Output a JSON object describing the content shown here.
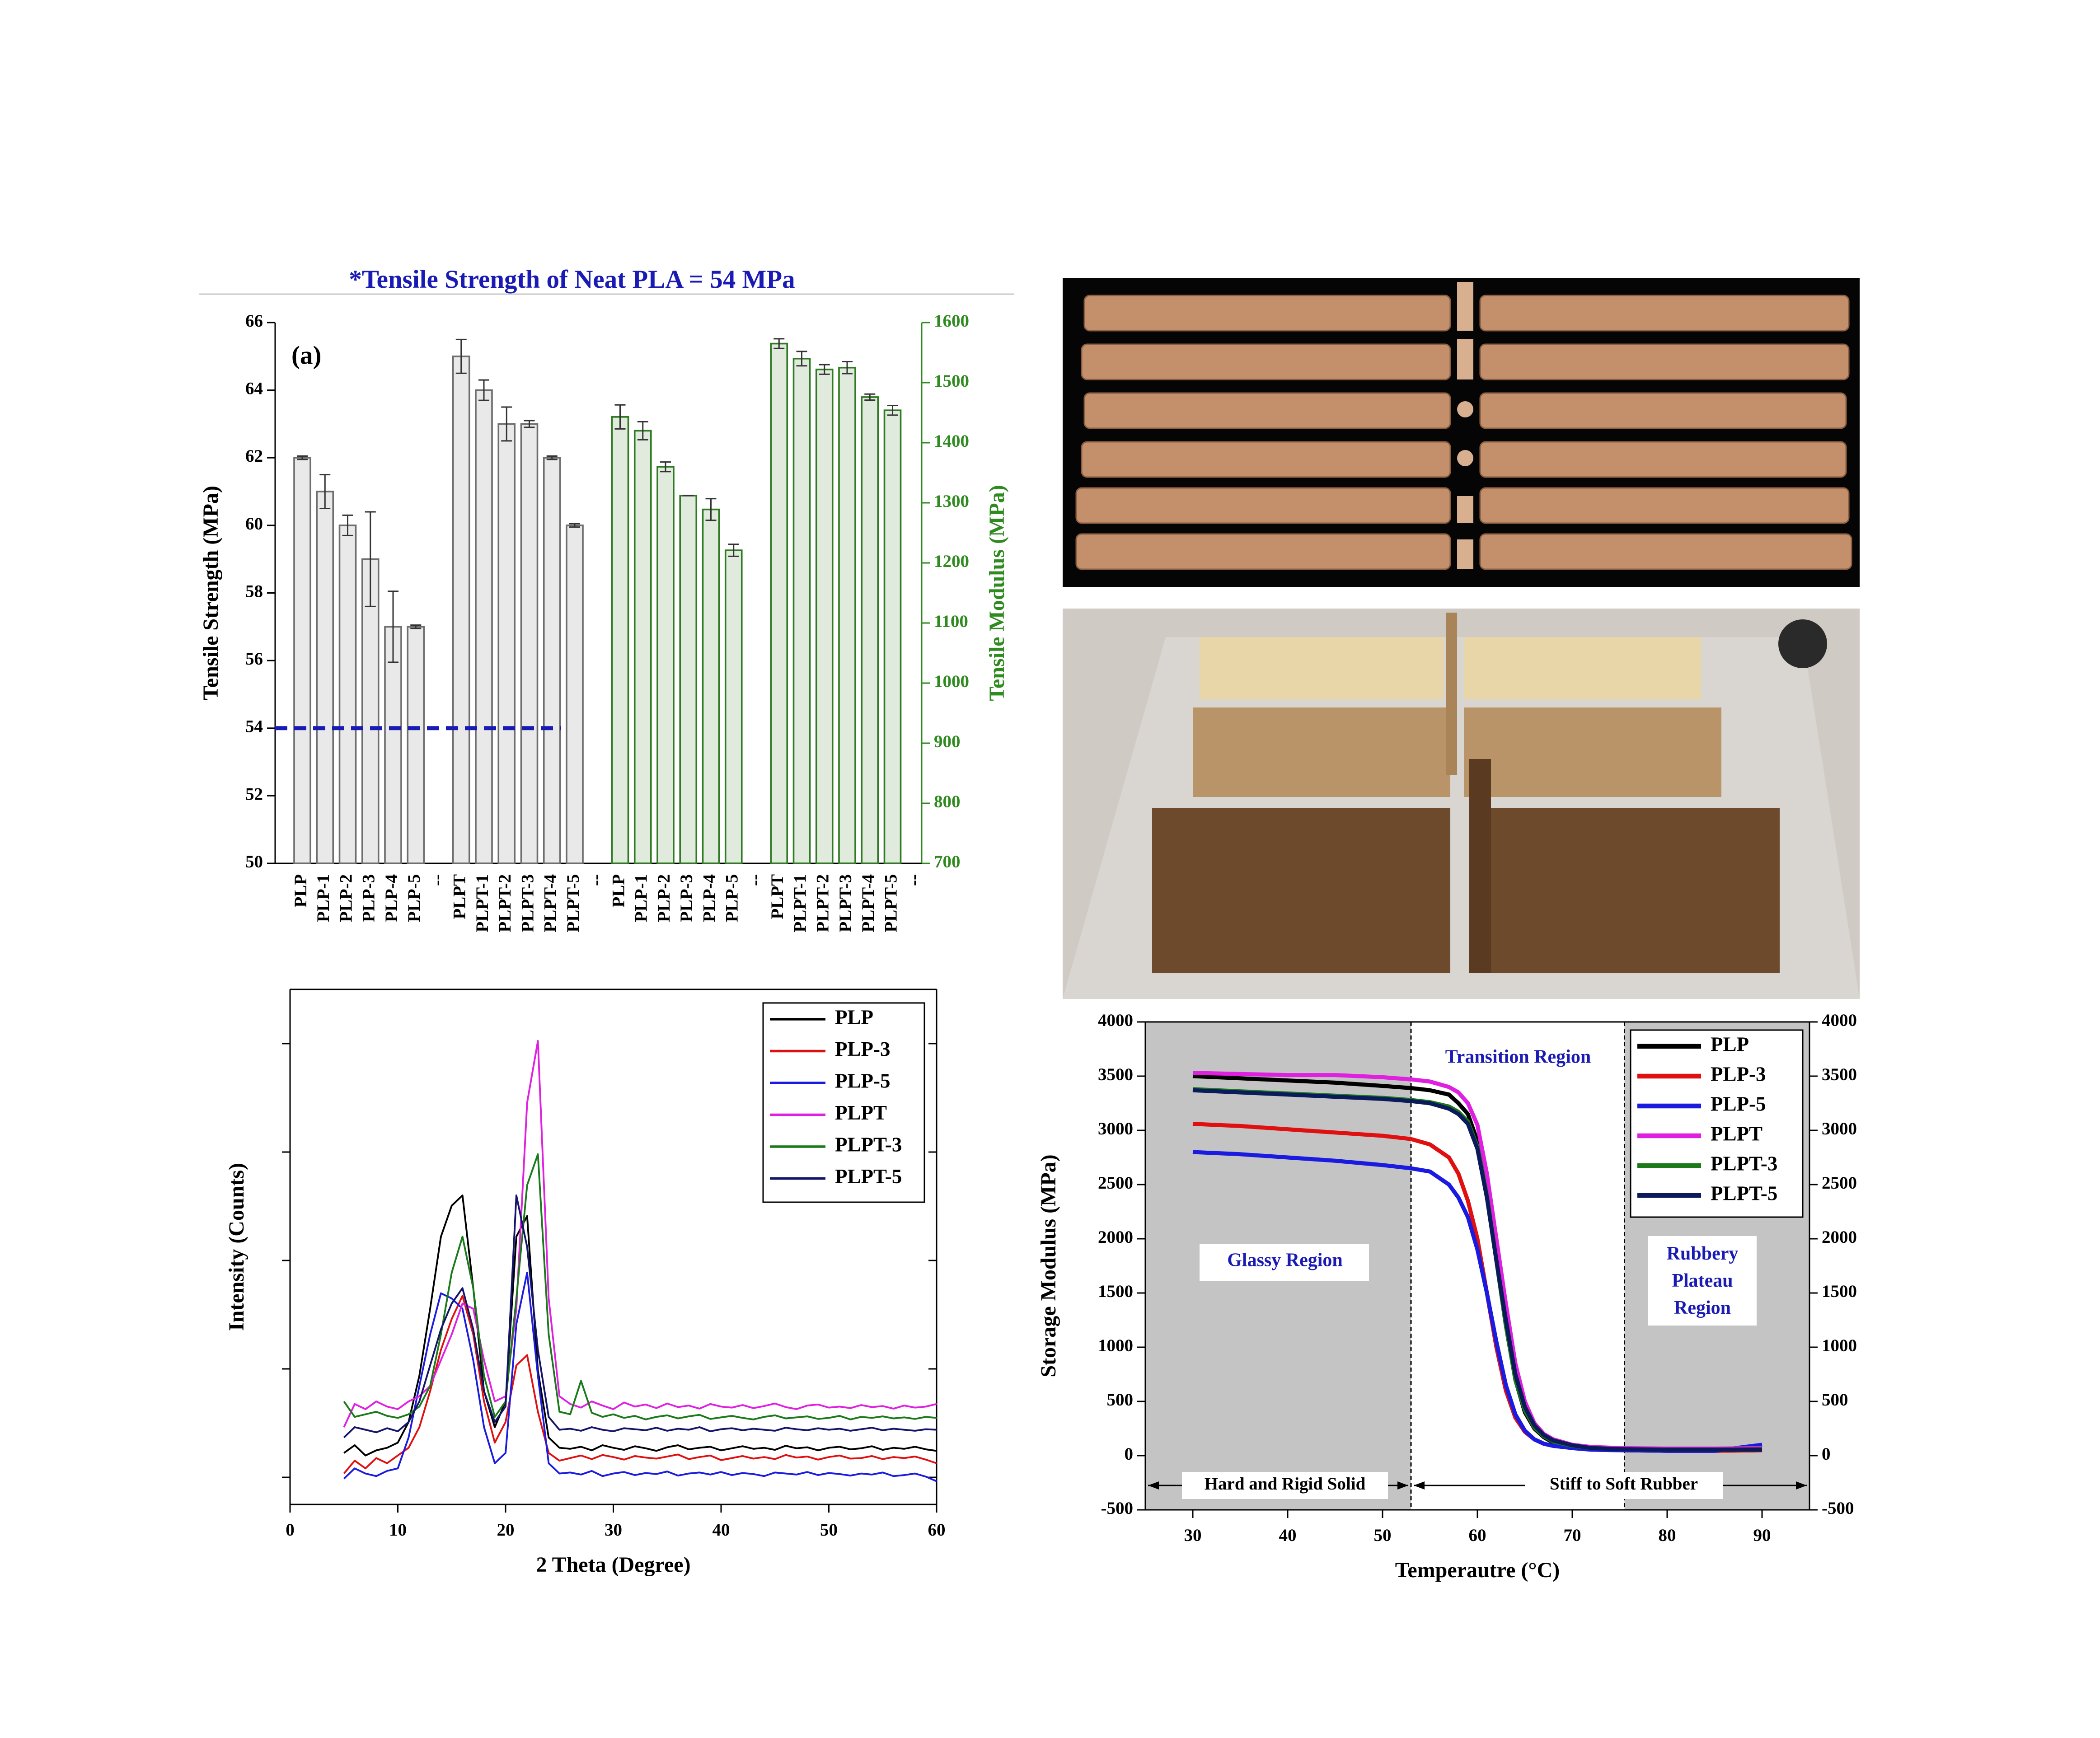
{
  "chart_data": [
    {
      "type": "bar",
      "title": "*Tensile Strength of Neat PLA = 54 MPa",
      "label": "(a)",
      "ylabel": "Tensile Strength (MPa)",
      "y2label": "Tensile Modulus (MPa)",
      "y2_color": "#2f8a1f",
      "categories": [
        "PLP",
        "PLP-1",
        "PLP-2",
        "PLP-3",
        "PLP-4",
        "PLP-5",
        "--",
        "PLPT",
        "PLPT-1",
        "PLPT-2",
        "PLPT-3",
        "PLPT-4",
        "PLPT-5",
        "--",
        "PLP",
        "PLP-1",
        "PLP-2",
        "PLP-3",
        "PLP-4",
        "PLP-5",
        "--",
        "PLPT",
        "PLPT-1",
        "PLPT-2",
        "PLPT-3",
        "PLPT-4",
        "PLPT-5",
        "--"
      ],
      "series": [
        {
          "color": "#6e6e6e",
          "axis": "y",
          "values": [
            62,
            61,
            60,
            59,
            57,
            57,
            null,
            65,
            64,
            63,
            63,
            62,
            60,
            null,
            null,
            null,
            null,
            null,
            null,
            null,
            null,
            null,
            null,
            null,
            null,
            null,
            null,
            null
          ],
          "errors": [
            0.05,
            0.5,
            0.3,
            1.4,
            1.05,
            0.05,
            null,
            0.5,
            0.3,
            0.5,
            0.1,
            0.05,
            0.05,
            null,
            null,
            null,
            null,
            null,
            null,
            null,
            null,
            null,
            null,
            null,
            null,
            null,
            null,
            null
          ]
        },
        {
          "color": "#2f7a22",
          "axis": "y2",
          "values": [
            null,
            null,
            null,
            null,
            null,
            null,
            null,
            null,
            null,
            null,
            null,
            null,
            null,
            null,
            1443,
            1420,
            1360,
            1312,
            1289,
            1221,
            null,
            1565,
            1540,
            1522,
            1525,
            1476,
            1454,
            null
          ],
          "errors": [
            null,
            null,
            null,
            null,
            null,
            null,
            null,
            null,
            null,
            null,
            null,
            null,
            null,
            null,
            20,
            15,
            8,
            0,
            18,
            10,
            null,
            8,
            12,
            8,
            10,
            5,
            8,
            null
          ]
        }
      ],
      "reference_line": {
        "value": 54,
        "color": "#1a1ab4"
      },
      "ylim": [
        50,
        66
      ],
      "yticks": [
        50,
        52,
        54,
        56,
        58,
        60,
        62,
        64,
        66
      ],
      "y2lim": [
        700,
        1600
      ],
      "y2ticks": [
        700,
        800,
        900,
        1000,
        1100,
        1200,
        1300,
        1400,
        1500,
        1600
      ]
    },
    {
      "type": "line",
      "xlabel": "2 Theta (Degree)",
      "ylabel": "Intensity (Counts)",
      "legend": "upper right",
      "xlim": [
        0,
        60
      ],
      "xticks": [
        0,
        10,
        20,
        30,
        40,
        50,
        60
      ],
      "ylim": [
        0,
        1000
      ],
      "x": [
        5,
        6,
        7,
        8,
        9,
        10,
        11,
        12,
        13,
        14,
        15,
        16,
        17,
        18,
        19,
        20,
        21,
        22,
        23,
        24,
        25,
        26,
        27,
        28,
        29,
        30,
        31,
        32,
        33,
        34,
        35,
        36,
        37,
        38,
        39,
        40,
        41,
        42,
        43,
        44,
        45,
        46,
        47,
        48,
        49,
        50,
        51,
        52,
        53,
        54,
        55,
        56,
        57,
        58,
        59,
        60
      ],
      "series": [
        {
          "name": "PLP",
          "color": "#000000",
          "values": [
            100,
            115,
            95,
            105,
            110,
            120,
            160,
            250,
            380,
            520,
            580,
            600,
            420,
            220,
            150,
            200,
            520,
            560,
            260,
            130,
            110,
            108,
            112,
            105,
            115,
            110,
            106,
            113,
            109,
            104,
            111,
            115,
            107,
            110,
            112,
            105,
            109,
            113,
            108,
            110,
            106,
            114,
            109,
            111,
            105,
            110,
            112,
            107,
            109,
            113,
            106,
            110,
            108,
            112,
            107,
            104
          ]
        },
        {
          "name": "PLP-3",
          "color": "#e01010",
          "values": [
            60,
            85,
            70,
            90,
            80,
            95,
            110,
            150,
            220,
            300,
            360,
            405,
            330,
            200,
            120,
            160,
            270,
            290,
            180,
            100,
            85,
            90,
            95,
            88,
            96,
            92,
            87,
            94,
            91,
            89,
            93,
            97,
            88,
            92,
            95,
            86,
            90,
            94,
            89,
            92,
            88,
            96,
            91,
            93,
            87,
            92,
            95,
            89,
            90,
            94,
            88,
            92,
            90,
            93,
            87,
            80
          ]
        },
        {
          "name": "PLP-5",
          "color": "#1a1ae0",
          "values": [
            50,
            70,
            60,
            55,
            65,
            70,
            130,
            230,
            330,
            410,
            400,
            380,
            280,
            150,
            80,
            100,
            350,
            450,
            250,
            80,
            60,
            62,
            58,
            65,
            55,
            60,
            63,
            57,
            61,
            59,
            64,
            56,
            60,
            62,
            58,
            63,
            57,
            61,
            59,
            55,
            62,
            60,
            58,
            63,
            57,
            61,
            59,
            56,
            60,
            58,
            62,
            55,
            57,
            60,
            54,
            45
          ]
        },
        {
          "name": "PLPT",
          "color": "#e020e0",
          "values": [
            150,
            195,
            185,
            200,
            190,
            185,
            200,
            210,
            230,
            280,
            330,
            390,
            380,
            280,
            200,
            210,
            380,
            780,
            900,
            400,
            210,
            195,
            188,
            200,
            192,
            185,
            198,
            190,
            194,
            187,
            196,
            189,
            192,
            186,
            195,
            190,
            188,
            193,
            187,
            191,
            196,
            189,
            185,
            192,
            194,
            188,
            190,
            187,
            193,
            189,
            191,
            186,
            192,
            188,
            190,
            195
          ]
        },
        {
          "name": "PLPT-3",
          "color": "#1a7a1a",
          "values": [
            200,
            170,
            175,
            180,
            172,
            168,
            175,
            190,
            230,
            330,
            450,
            520,
            420,
            250,
            170,
            200,
            400,
            620,
            680,
            330,
            180,
            175,
            240,
            178,
            170,
            175,
            168,
            172,
            165,
            170,
            173,
            167,
            171,
            174,
            166,
            169,
            172,
            168,
            165,
            170,
            173,
            167,
            169,
            171,
            166,
            168,
            172,
            165,
            170,
            168,
            171,
            167,
            169,
            166,
            170,
            168
          ]
        },
        {
          "name": "PLPT-5",
          "color": "#14146a",
          "values": [
            130,
            150,
            145,
            140,
            148,
            142,
            160,
            200,
            270,
            340,
            390,
            420,
            340,
            220,
            160,
            190,
            600,
            500,
            300,
            170,
            145,
            147,
            143,
            150,
            145,
            142,
            148,
            146,
            144,
            149,
            143,
            147,
            145,
            150,
            142,
            146,
            148,
            144,
            147,
            145,
            143,
            149,
            146,
            144,
            148,
            145,
            147,
            143,
            146,
            149,
            144,
            147,
            145,
            143,
            146,
            145
          ]
        }
      ]
    },
    {
      "type": "line",
      "xlabel": "Temperautre (°C)",
      "ylabel": "Storage Modulus (MPa)",
      "legend": "upper right",
      "xlim": [
        25,
        95
      ],
      "xticks": [
        30,
        40,
        50,
        60,
        70,
        80,
        90
      ],
      "ylim": [
        -500,
        4000
      ],
      "yticks": [
        -500,
        0,
        500,
        1000,
        1500,
        2000,
        2500,
        3000,
        3500,
        4000
      ],
      "y2lim": [
        -500,
        4000
      ],
      "y2ticks": [
        -500,
        0,
        500,
        1000,
        1500,
        2000,
        2500,
        3000,
        3500,
        4000
      ],
      "region_bounds": [
        53,
        75.5
      ],
      "annotations": [
        "Transition Region",
        "Glassy Region",
        "Rubbery Plateau Region",
        "Hard and Rigid Solid",
        "Stiff to Soft Rubber"
      ],
      "x": [
        30,
        35,
        40,
        45,
        50,
        53,
        55,
        57,
        58,
        59,
        60,
        61,
        62,
        63,
        64,
        65,
        66,
        67,
        68,
        70,
        72,
        75,
        80,
        85,
        90
      ],
      "series": [
        {
          "name": "PLP",
          "color": "#000000",
          "values": [
            3500,
            3480,
            3460,
            3440,
            3410,
            3390,
            3370,
            3330,
            3250,
            3150,
            2900,
            2400,
            1800,
            1200,
            700,
            400,
            250,
            170,
            120,
            80,
            60,
            50,
            45,
            45,
            50
          ]
        },
        {
          "name": "PLP-3",
          "color": "#e01010",
          "values": [
            3060,
            3040,
            3010,
            2980,
            2950,
            2920,
            2870,
            2750,
            2600,
            2350,
            2000,
            1500,
            1000,
            600,
            350,
            220,
            150,
            110,
            90,
            70,
            55,
            50,
            45,
            45,
            50
          ]
        },
        {
          "name": "PLP-5",
          "color": "#1a1ae0",
          "values": [
            2800,
            2780,
            2750,
            2720,
            2680,
            2650,
            2620,
            2500,
            2380,
            2200,
            1900,
            1500,
            1050,
            650,
            380,
            230,
            150,
            110,
            90,
            70,
            55,
            50,
            45,
            45,
            100
          ]
        },
        {
          "name": "PLPT",
          "color": "#e020e0",
          "values": [
            3530,
            3520,
            3510,
            3510,
            3490,
            3470,
            3450,
            3400,
            3350,
            3250,
            3050,
            2600,
            2000,
            1400,
            850,
            500,
            300,
            200,
            150,
            100,
            80,
            70,
            65,
            65,
            70
          ]
        },
        {
          "name": "PLPT-3",
          "color": "#1a7a1a",
          "values": [
            3380,
            3360,
            3340,
            3320,
            3300,
            3280,
            3260,
            3220,
            3170,
            3080,
            2850,
            2400,
            1800,
            1200,
            700,
            420,
            260,
            180,
            130,
            90,
            70,
            60,
            55,
            55,
            60
          ]
        },
        {
          "name": "PLPT-5",
          "color": "#0a1a5a",
          "values": [
            3370,
            3350,
            3330,
            3310,
            3290,
            3270,
            3250,
            3200,
            3150,
            3060,
            2830,
            2380,
            1800,
            1250,
            750,
            450,
            280,
            190,
            140,
            95,
            70,
            60,
            55,
            55,
            55
          ]
        }
      ]
    }
  ]
}
